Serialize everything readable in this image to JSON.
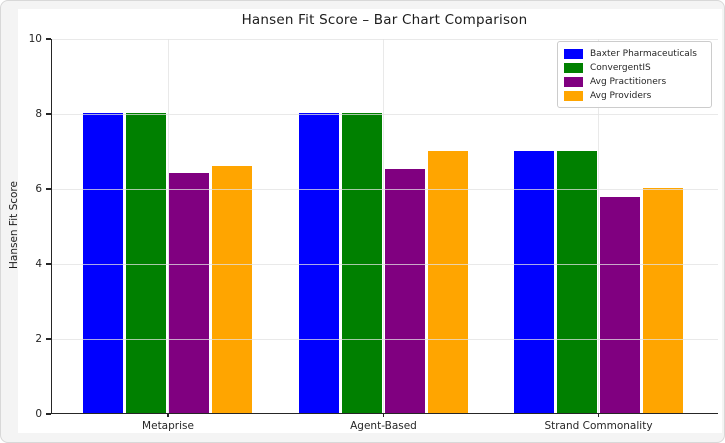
{
  "title": "Hansen Fit Score – Bar Chart Comparison",
  "ylabel": "Hansen Fit Score",
  "chart_data": {
    "type": "bar",
    "title": "Hansen Fit Score – Bar Chart Comparison",
    "xlabel": "",
    "ylabel": "Hansen Fit Score",
    "ylim": [
      0,
      10
    ],
    "yticks": [
      0,
      2,
      4,
      6,
      8,
      10
    ],
    "grid": true,
    "grid_color": "#e1e1e1",
    "legend_position": "upper right",
    "categories": [
      "Metaprise",
      "Agent-Based",
      "Strand Commonality"
    ],
    "series": [
      {
        "name": "Baxter Pharmaceuticals",
        "color": "#0000ff",
        "values": [
          8.0,
          8.0,
          7.0
        ]
      },
      {
        "name": "ConvergentIS",
        "color": "#008000",
        "values": [
          8.0,
          8.0,
          7.0
        ]
      },
      {
        "name": "Avg Practitioners",
        "color": "#800080",
        "values": [
          6.4,
          6.5,
          5.75
        ]
      },
      {
        "name": "Avg Providers",
        "color": "#ffa500",
        "values": [
          6.6,
          7.0,
          6.0
        ]
      }
    ]
  }
}
